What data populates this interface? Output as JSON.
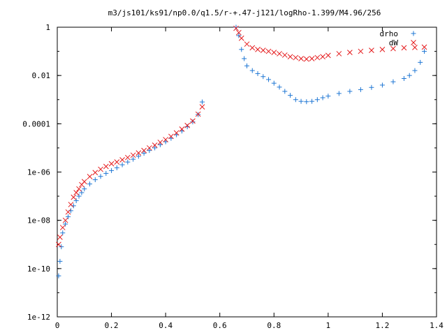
{
  "chart_data": {
    "type": "scatter",
    "title": "m3/js101/ks91/np0.0/q1.5/r-+.47-j121/logRho-1.399/M4.96/256",
    "xlabel": "",
    "ylabel": "",
    "xlim": [
      0,
      1.4
    ],
    "ylim": [
      1e-12,
      1
    ],
    "yscale": "log",
    "grid": false,
    "legend": "top-right",
    "x_ticks": [
      "0",
      "0.2",
      "0.4",
      "0.6",
      "0.8",
      "1",
      "1.2",
      "1.4"
    ],
    "y_ticks": [
      "1e-12",
      "1e-10",
      "1e-08",
      "1e-06",
      "0.0001",
      "0.01",
      "1"
    ],
    "series": [
      {
        "name": "drho",
        "marker": "plus",
        "color": "#1f77d4",
        "points": [
          [
            0.005,
            5e-11
          ],
          [
            0.01,
            2e-10
          ],
          [
            0.015,
            8e-10
          ],
          [
            0.02,
            3e-09
          ],
          [
            0.03,
            7e-09
          ],
          [
            0.04,
            1.4e-08
          ],
          [
            0.05,
            2.5e-08
          ],
          [
            0.06,
            4e-08
          ],
          [
            0.07,
            6.5e-08
          ],
          [
            0.08,
            1e-07
          ],
          [
            0.09,
            1.4e-07
          ],
          [
            0.1,
            2e-07
          ],
          [
            0.12,
            3.2e-07
          ],
          [
            0.14,
            4.8e-07
          ],
          [
            0.16,
            6.6e-07
          ],
          [
            0.18,
            8.8e-07
          ],
          [
            0.2,
            1.15e-06
          ],
          [
            0.22,
            1.5e-06
          ],
          [
            0.24,
            2e-06
          ],
          [
            0.26,
            2.6e-06
          ],
          [
            0.28,
            3.4e-06
          ],
          [
            0.3,
            4.5e-06
          ],
          [
            0.32,
            6e-06
          ],
          [
            0.34,
            7.8e-06
          ],
          [
            0.36,
            1e-05
          ],
          [
            0.38,
            1.35e-05
          ],
          [
            0.4,
            1.8e-05
          ],
          [
            0.42,
            2.5e-05
          ],
          [
            0.44,
            3.5e-05
          ],
          [
            0.46,
            5e-05
          ],
          [
            0.48,
            7.5e-05
          ],
          [
            0.5,
            0.00012
          ],
          [
            0.52,
            0.00024
          ],
          [
            0.535,
            0.0008
          ],
          [
            0.66,
            1
          ],
          [
            0.67,
            0.45
          ],
          [
            0.68,
            0.12
          ],
          [
            0.69,
            0.05
          ],
          [
            0.7,
            0.025
          ],
          [
            0.72,
            0.016
          ],
          [
            0.74,
            0.012
          ],
          [
            0.76,
            0.009
          ],
          [
            0.78,
            0.0068
          ],
          [
            0.8,
            0.0048
          ],
          [
            0.82,
            0.0033
          ],
          [
            0.84,
            0.0022
          ],
          [
            0.86,
            0.0015
          ],
          [
            0.88,
            0.001
          ],
          [
            0.9,
            0.00085
          ],
          [
            0.92,
            0.00082
          ],
          [
            0.94,
            0.00085
          ],
          [
            0.96,
            0.001
          ],
          [
            0.98,
            0.0012
          ],
          [
            1.0,
            0.0014
          ],
          [
            1.04,
            0.0018
          ],
          [
            1.08,
            0.0022
          ],
          [
            1.12,
            0.0026
          ],
          [
            1.16,
            0.0032
          ],
          [
            1.2,
            0.004
          ],
          [
            1.24,
            0.0055
          ],
          [
            1.28,
            0.0075
          ],
          [
            1.3,
            0.01
          ],
          [
            1.32,
            0.016
          ],
          [
            1.34,
            0.035
          ],
          [
            1.355,
            0.1
          ]
        ]
      },
      {
        "name": "dW",
        "marker": "cross",
        "color": "#e41a1c",
        "points": [
          [
            0.005,
            1e-09
          ],
          [
            0.01,
            2e-09
          ],
          [
            0.02,
            5e-09
          ],
          [
            0.03,
            1e-08
          ],
          [
            0.04,
            2.2e-08
          ],
          [
            0.05,
            4.5e-08
          ],
          [
            0.06,
            9e-08
          ],
          [
            0.07,
            1.4e-07
          ],
          [
            0.08,
            2e-07
          ],
          [
            0.09,
            3e-07
          ],
          [
            0.1,
            4e-07
          ],
          [
            0.12,
            6.5e-07
          ],
          [
            0.14,
            9.5e-07
          ],
          [
            0.16,
            1.3e-06
          ],
          [
            0.18,
            1.7e-06
          ],
          [
            0.2,
            2.2e-06
          ],
          [
            0.22,
            2.6e-06
          ],
          [
            0.24,
            3.2e-06
          ],
          [
            0.26,
            4e-06
          ],
          [
            0.28,
            5e-06
          ],
          [
            0.3,
            6.2e-06
          ],
          [
            0.32,
            7.8e-06
          ],
          [
            0.34,
            1e-05
          ],
          [
            0.36,
            1.3e-05
          ],
          [
            0.38,
            1.7e-05
          ],
          [
            0.4,
            2.2e-05
          ],
          [
            0.42,
            3e-05
          ],
          [
            0.44,
            4.2e-05
          ],
          [
            0.46,
            6e-05
          ],
          [
            0.48,
            8.5e-05
          ],
          [
            0.5,
            0.00013
          ],
          [
            0.52,
            0.00025
          ],
          [
            0.535,
            0.0005
          ],
          [
            0.66,
            0.9
          ],
          [
            0.67,
            0.6
          ],
          [
            0.68,
            0.35
          ],
          [
            0.7,
            0.2
          ],
          [
            0.72,
            0.14
          ],
          [
            0.74,
            0.12
          ],
          [
            0.76,
            0.11
          ],
          [
            0.78,
            0.1
          ],
          [
            0.8,
            0.09
          ],
          [
            0.82,
            0.08
          ],
          [
            0.84,
            0.07
          ],
          [
            0.86,
            0.06
          ],
          [
            0.88,
            0.055
          ],
          [
            0.9,
            0.05
          ],
          [
            0.92,
            0.048
          ],
          [
            0.94,
            0.05
          ],
          [
            0.96,
            0.055
          ],
          [
            0.98,
            0.06
          ],
          [
            1.0,
            0.068
          ],
          [
            1.04,
            0.08
          ],
          [
            1.08,
            0.09
          ],
          [
            1.12,
            0.1
          ],
          [
            1.16,
            0.11
          ],
          [
            1.2,
            0.12
          ],
          [
            1.24,
            0.13
          ],
          [
            1.28,
            0.14
          ],
          [
            1.32,
            0.145
          ],
          [
            1.355,
            0.15
          ]
        ]
      }
    ]
  }
}
